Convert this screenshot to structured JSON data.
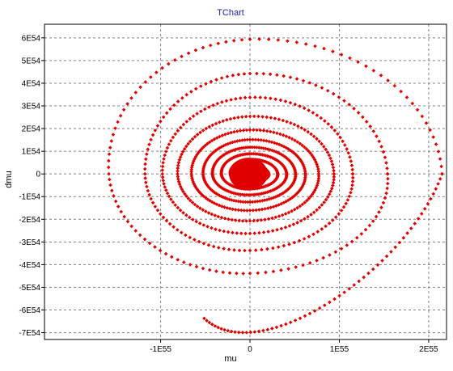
{
  "chart_data": {
    "type": "scatter",
    "title": "TChart",
    "xlabel": "mu",
    "ylabel": "dmu",
    "xlim": [
      -230000,
      220000
    ],
    "ylim": [
      -73000,
      66000
    ],
    "x_ticks": [
      {
        "value": -100000,
        "label": "-1E55"
      },
      {
        "value": 0,
        "label": "0"
      },
      {
        "value": 100000,
        "label": "1E55"
      },
      {
        "value": 200000,
        "label": "2E55"
      }
    ],
    "y_ticks": [
      {
        "value": 60000,
        "label": "6E54"
      },
      {
        "value": 50000,
        "label": "5E54"
      },
      {
        "value": 40000,
        "label": "4E54"
      },
      {
        "value": 30000,
        "label": "3E54"
      },
      {
        "value": 20000,
        "label": "2E54"
      },
      {
        "value": 10000,
        "label": "1E54"
      },
      {
        "value": 0,
        "label": "0"
      },
      {
        "value": -10000,
        "label": "-1E54"
      },
      {
        "value": -20000,
        "label": "-2E54"
      },
      {
        "value": -30000,
        "label": "-3E54"
      },
      {
        "value": -40000,
        "label": "-4E54"
      },
      {
        "value": -50000,
        "label": "-5E54"
      },
      {
        "value": -60000,
        "label": "-6E54"
      },
      {
        "value": -70000,
        "label": "-7E54"
      }
    ],
    "grid": true,
    "marker": "diamond",
    "spiral": {
      "center": [
        0,
        0
      ],
      "start": [
        -78000,
        -71500
      ],
      "turns": [
        {
          "x_max": 215000,
          "y_top": 63500,
          "x_min": -188000,
          "y_bottom": -54000
        },
        {
          "x_max": 154000,
          "y_top": 47000,
          "x_min": -128000,
          "y_bottom": -40500
        },
        {
          "x_max": 115000,
          "y_top": 36000,
          "x_min": -107000,
          "y_bottom": -31500
        },
        {
          "x_max": 94000,
          "y_top": 27000,
          "x_min": -89000,
          "y_bottom": -24500
        },
        {
          "x_max": 77000,
          "y_top": 20500,
          "x_min": -73000,
          "y_bottom": -19500
        },
        {
          "x_max": 62000,
          "y_top": 16000,
          "x_min": -58000,
          "y_bottom": -15000
        },
        {
          "x_max": 51000,
          "y_top": 12500,
          "x_min": -47000,
          "y_bottom": -11500
        },
        {
          "x_max": 41000,
          "y_top": 9500,
          "x_min": -37000,
          "y_bottom": -8500
        },
        {
          "x_max": 31000,
          "y_top": 7000,
          "x_min": -27000,
          "y_bottom": -6000
        },
        {
          "x_max": 21000,
          "y_top": 4500,
          "x_min": -17000,
          "y_bottom": -3500
        },
        {
          "x_max": 11000,
          "y_top": 2000,
          "x_min": -7000,
          "y_bottom": -1000
        }
      ]
    }
  },
  "colors": {
    "series": "#e00000",
    "title": "#1a1ab4",
    "grid": "#808080",
    "axis": "#000000",
    "text": "#000000"
  }
}
